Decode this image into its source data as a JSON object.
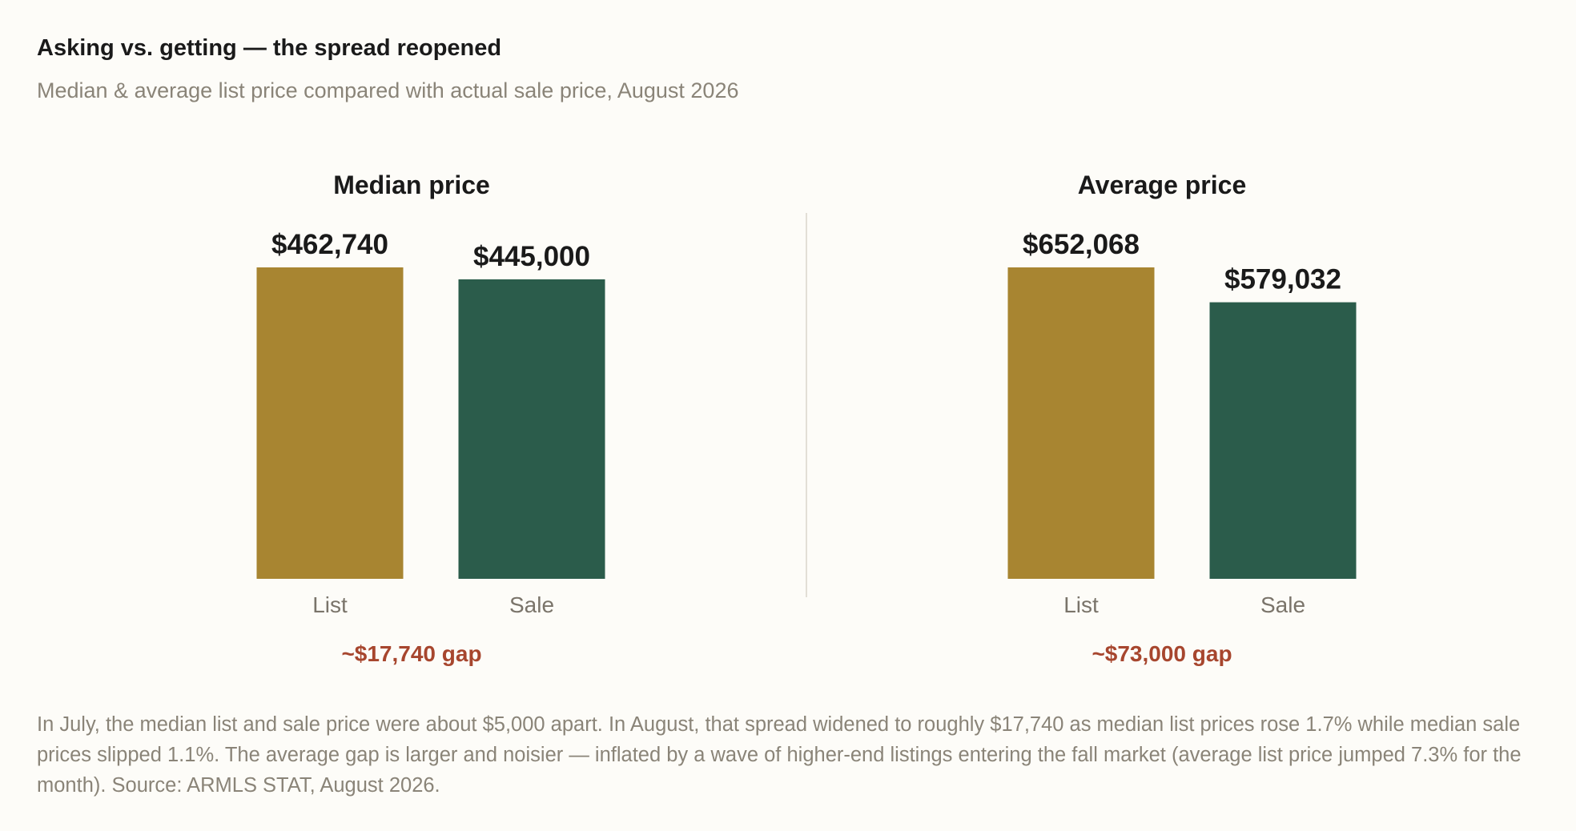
{
  "header": {
    "title": "Asking vs. getting — the spread reopened",
    "subtitle": "Median & average list price compared with actual sale price, August 2026"
  },
  "chart_data": [
    {
      "type": "bar",
      "title": "Median price",
      "categories": [
        "List",
        "Sale"
      ],
      "values": [
        462740,
        445000
      ],
      "value_labels": [
        "$462,740",
        "$445,000"
      ],
      "colors": [
        "#a88531",
        "#2b5c4b"
      ],
      "annotation": "~$17,740 gap",
      "ylim": [
        0,
        462740
      ]
    },
    {
      "type": "bar",
      "title": "Average price",
      "categories": [
        "List",
        "Sale"
      ],
      "values": [
        652068,
        579032
      ],
      "value_labels": [
        "$652,068",
        "$579,032"
      ],
      "colors": [
        "#a88531",
        "#2b5c4b"
      ],
      "annotation": "~$73,000 gap",
      "ylim": [
        0,
        652068
      ]
    }
  ],
  "footnote": "In July, the median list and sale price were about $5,000 apart. In August, that spread widened to roughly $17,740 as median list prices rose 1.7% while median sale prices slipped 1.1%. The average gap is larger and noisier — inflated by a wave of higher-end listings entering the fall market (average list price jumped 7.3% for the month). Source: ARMLS STAT, August 2026."
}
